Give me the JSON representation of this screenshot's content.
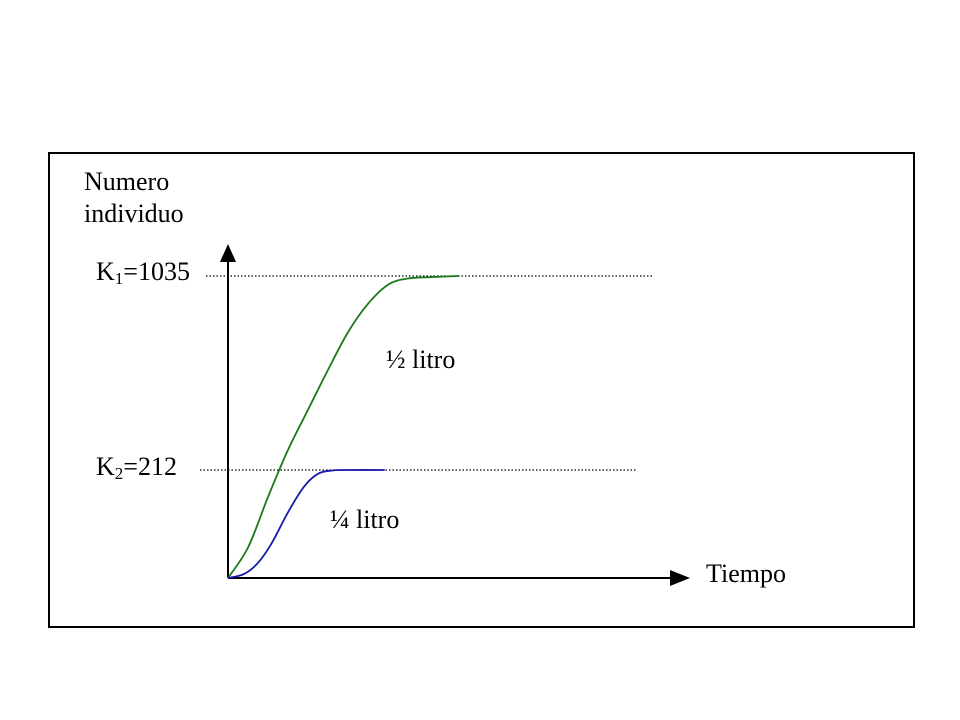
{
  "chart_data": {
    "type": "line",
    "ylabel_lines": [
      "Numero",
      "individuo"
    ],
    "xlabel": "Tiempo",
    "axis_ticks_shown": false,
    "grid": false,
    "reference_lines": [
      {
        "value": 1035,
        "label_base": "K",
        "label_sub": "1",
        "label_rest": "=1035",
        "style": "dotted"
      },
      {
        "value": 212,
        "label_base": "K",
        "label_sub": "2",
        "label_rest": "=212",
        "style": "dotted"
      }
    ],
    "series": [
      {
        "name": "½ litro",
        "color": "#1a7a1a",
        "points": [
          [
            0,
            0
          ],
          [
            10,
            60
          ],
          [
            20,
            160
          ],
          [
            30,
            300
          ],
          [
            40,
            470
          ],
          [
            50,
            640
          ],
          [
            60,
            800
          ],
          [
            70,
            920
          ],
          [
            80,
            1000
          ],
          [
            90,
            1025
          ],
          [
            100,
            1030
          ],
          [
            115,
            1035
          ]
        ]
      },
      {
        "name": "¼  litro",
        "color": "#1a1aaa",
        "points": [
          [
            0,
            0
          ],
          [
            8,
            8
          ],
          [
            15,
            30
          ],
          [
            22,
            70
          ],
          [
            30,
            130
          ],
          [
            38,
            180
          ],
          [
            45,
            205
          ],
          [
            52,
            211
          ],
          [
            60,
            212
          ],
          [
            78,
            212
          ]
        ]
      }
    ],
    "xlim": [
      0,
      230
    ],
    "ylim": [
      0,
      1070
    ]
  }
}
